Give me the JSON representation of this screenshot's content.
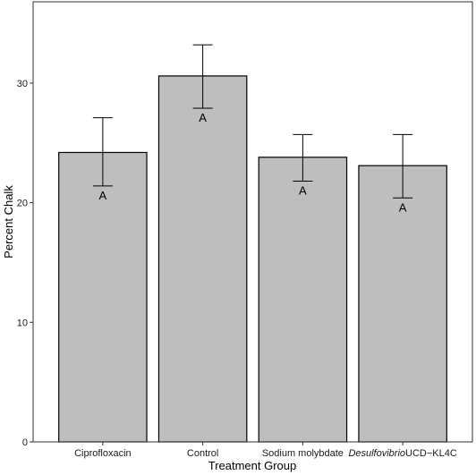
{
  "chart_data": {
    "type": "bar",
    "xlabel": "Treatment Group",
    "ylabel": "Percent Chalk",
    "ylim": [
      0,
      36.8
    ],
    "yticks": [
      0,
      10,
      20,
      30
    ],
    "grid": false,
    "colors": {
      "bar_fill": "#bebebe",
      "bar_stroke": "#000000",
      "panel_border": "#333333"
    },
    "categories": [
      {
        "label": "Ciprofloxacin",
        "italic_part": "",
        "rest": "Ciprofloxacin"
      },
      {
        "label": "Control",
        "italic_part": "",
        "rest": "Control"
      },
      {
        "label": "Sodium molybdate",
        "italic_part": "",
        "rest": "Sodium molybdate"
      },
      {
        "label": "Desulfovibrio UCD-KL4C",
        "italic_part": "Desulfovibrio",
        "rest": "UCD−KL4C"
      }
    ],
    "values": [
      24.2,
      30.6,
      23.8,
      23.1
    ],
    "error_low": [
      21.4,
      27.9,
      21.8,
      20.4
    ],
    "error_high": [
      27.1,
      33.2,
      25.7,
      25.7
    ],
    "significance_labels": [
      "A",
      "A",
      "A",
      "A"
    ]
  }
}
